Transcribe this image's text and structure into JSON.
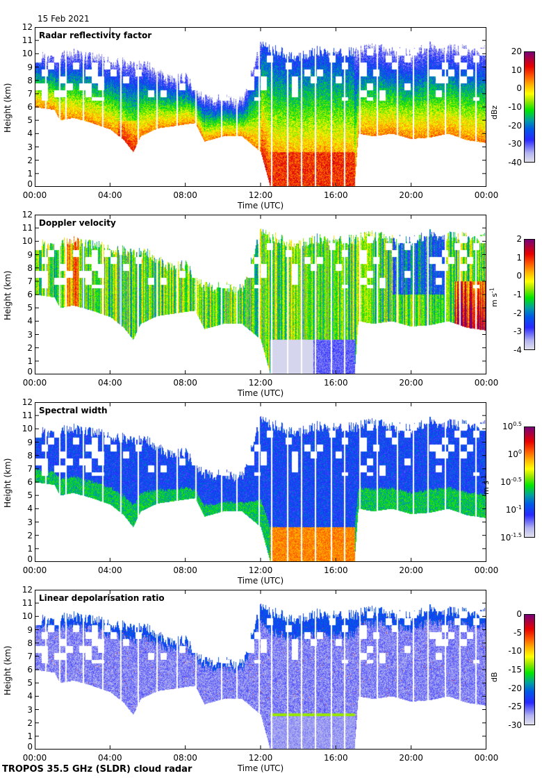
{
  "date": "15 Feb 2021",
  "footer": "TROPOS 35.5 GHz (SLDR) cloud radar",
  "chart_data": [
    {
      "type": "heatmap",
      "title": "Radar reflectivity factor",
      "xlabel": "Time (UTC)",
      "ylabel": "Height (km)",
      "x_ticks": [
        "00:00",
        "04:00",
        "08:00",
        "12:00",
        "16:00",
        "20:00",
        "00:00"
      ],
      "y_ticks": [
        "0",
        "1",
        "2",
        "3",
        "4",
        "5",
        "6",
        "7",
        "8",
        "9",
        "10",
        "11",
        "12"
      ],
      "xlim_hours": [
        0,
        24
      ],
      "ylim_km": [
        0,
        12
      ],
      "colorbar": {
        "label": "dBz",
        "ticks": [
          "20",
          "10",
          "0",
          "-10",
          "-20",
          "-30",
          "-40"
        ],
        "range": [
          -40,
          20
        ]
      },
      "variable": "Z"
    },
    {
      "type": "heatmap",
      "title": "Doppler velocity",
      "xlabel": "Time (UTC)",
      "ylabel": "Height (km)",
      "x_ticks": [
        "00:00",
        "04:00",
        "08:00",
        "12:00",
        "16:00",
        "20:00",
        "00:00"
      ],
      "y_ticks": [
        "0",
        "1",
        "2",
        "3",
        "4",
        "5",
        "6",
        "7",
        "8",
        "9",
        "10",
        "11",
        "12"
      ],
      "xlim_hours": [
        0,
        24
      ],
      "ylim_km": [
        0,
        12
      ],
      "colorbar": {
        "label": "m s-1",
        "label_base": "m s",
        "label_exp": "-1",
        "ticks": [
          "2",
          "1",
          "0",
          "-1",
          "-2",
          "-3",
          "-4"
        ],
        "range": [
          -4,
          2
        ]
      },
      "variable": "V"
    },
    {
      "type": "heatmap",
      "title": "Spectral width",
      "xlabel": "Time (UTC)",
      "ylabel": "Height (km)",
      "x_ticks": [
        "00:00",
        "04:00",
        "08:00",
        "12:00",
        "16:00",
        "20:00",
        "00:00"
      ],
      "y_ticks": [
        "0",
        "1",
        "2",
        "3",
        "4",
        "5",
        "6",
        "7",
        "8",
        "9",
        "10",
        "11",
        "12"
      ],
      "xlim_hours": [
        0,
        24
      ],
      "ylim_km": [
        0,
        12
      ],
      "colorbar": {
        "label": "m s-1",
        "label_base": "m s",
        "label_exp": "-1",
        "ticks": [
          {
            "base": "10",
            "exp": "0.5"
          },
          {
            "base": "10",
            "exp": "0"
          },
          {
            "base": "10",
            "exp": "-0.5"
          },
          {
            "base": "10",
            "exp": "-1"
          },
          {
            "base": "10",
            "exp": "-1.5"
          }
        ],
        "range_log10": [
          -1.5,
          0.5
        ]
      },
      "variable": "W"
    },
    {
      "type": "heatmap",
      "title": "Linear depolarisation ratio",
      "xlabel": "Time (UTC)",
      "ylabel": "Height (km)",
      "x_ticks": [
        "00:00",
        "04:00",
        "08:00",
        "12:00",
        "16:00",
        "20:00",
        "00:00"
      ],
      "y_ticks": [
        "0",
        "1",
        "2",
        "3",
        "4",
        "5",
        "6",
        "7",
        "8",
        "9",
        "10",
        "11",
        "12"
      ],
      "xlim_hours": [
        0,
        24
      ],
      "ylim_km": [
        0,
        12
      ],
      "colorbar": {
        "label": "dB",
        "ticks": [
          "0",
          "-5",
          "-10",
          "-15",
          "-20",
          "-25",
          "-30"
        ],
        "range": [
          -30,
          0
        ]
      },
      "variable": "LDR"
    }
  ],
  "cloud_structure": {
    "cloud_base_km_by_hour": [
      [
        0,
        6.0
      ],
      [
        1,
        5.8
      ],
      [
        1.3,
        5.0
      ],
      [
        2,
        5.2
      ],
      [
        3,
        4.8
      ],
      [
        4,
        4.3
      ],
      [
        4.7,
        3.5
      ],
      [
        5.2,
        2.6
      ],
      [
        5.6,
        3.8
      ],
      [
        6.5,
        4.4
      ],
      [
        7.5,
        4.6
      ],
      [
        8.5,
        4.8
      ],
      [
        9,
        3.4
      ],
      [
        10,
        3.8
      ],
      [
        11,
        3.8
      ],
      [
        12,
        2.6
      ],
      [
        12.5,
        0.0
      ],
      [
        14.5,
        0.0
      ],
      [
        17,
        0.0
      ],
      [
        17.2,
        4.0
      ],
      [
        18,
        3.8
      ],
      [
        19,
        4.0
      ],
      [
        20,
        3.6
      ],
      [
        21,
        3.7
      ],
      [
        22,
        4.0
      ],
      [
        23,
        3.5
      ],
      [
        24,
        3.3
      ]
    ],
    "cloud_top_km_by_hour": [
      [
        0,
        10.3
      ],
      [
        1,
        10.2
      ],
      [
        2,
        10.5
      ],
      [
        3,
        10.2
      ],
      [
        4,
        9.9
      ],
      [
        5,
        9.7
      ],
      [
        6,
        9.5
      ],
      [
        7,
        8.6
      ],
      [
        8,
        8.6
      ],
      [
        9,
        7.0
      ],
      [
        10,
        7.0
      ],
      [
        11,
        6.8
      ],
      [
        12,
        11.2
      ],
      [
        13,
        10.6
      ],
      [
        14,
        10.2
      ],
      [
        15,
        10.7
      ],
      [
        16,
        10.5
      ],
      [
        17,
        10.6
      ],
      [
        18,
        10.9
      ],
      [
        19,
        10.6
      ],
      [
        20,
        10.5
      ],
      [
        21,
        11.0
      ],
      [
        22,
        10.8
      ],
      [
        23,
        10.8
      ],
      [
        24,
        10.7
      ]
    ],
    "melting_layer_km": 2.6,
    "rain_hours": [
      [
        12.5,
        17.0
      ]
    ],
    "data_gap_hours": [
      0.5,
      1.25,
      1.6,
      2.5,
      3.55,
      4.5,
      5.45,
      6.45,
      7.5,
      8.5,
      9.9,
      10.7,
      11.9,
      12.55,
      13.4,
      14.15,
      14.9,
      15.75,
      16.45,
      17.25,
      18.2,
      19.25,
      20.1,
      20.9,
      21.8,
      22.6,
      23.45
    ]
  }
}
